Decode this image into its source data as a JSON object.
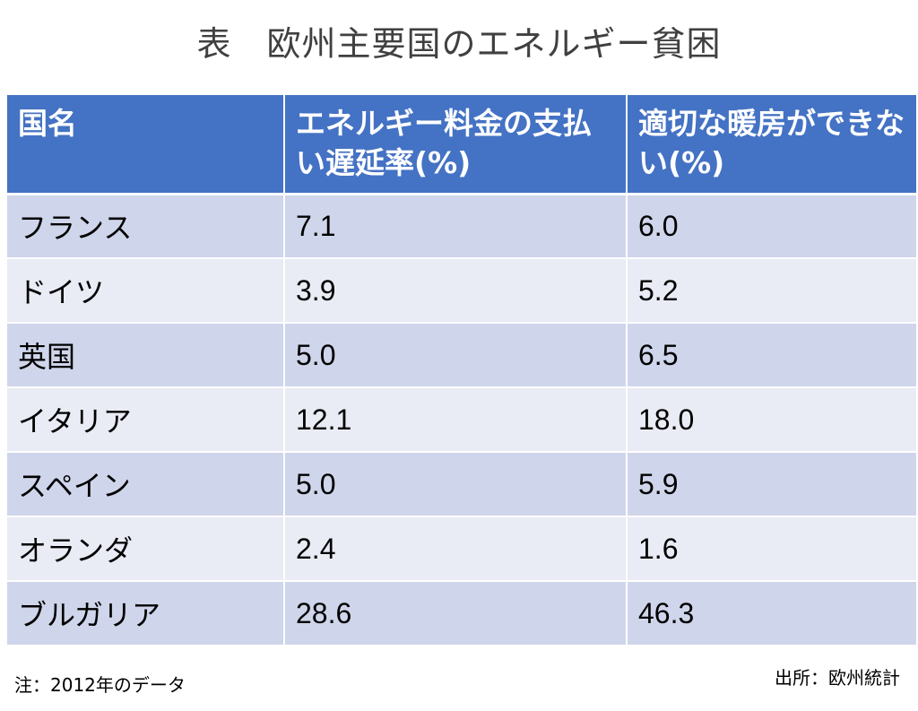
{
  "title": "表　欧州主要国のエネルギー貧困",
  "table": {
    "headers": [
      "国名",
      "エネルギー料金の支払い遅延率(%)",
      "適切な暖房ができない(%)"
    ],
    "rows": [
      {
        "country": "フランス",
        "arrears": "7.1",
        "heating": "6.0"
      },
      {
        "country": "ドイツ",
        "arrears": "3.9",
        "heating": "5.2"
      },
      {
        "country": "英国",
        "arrears": "5.0",
        "heating": "6.5"
      },
      {
        "country": "イタリア",
        "arrears": "12.1",
        "heating": "18.0"
      },
      {
        "country": "スペイン",
        "arrears": "5.0",
        "heating": "5.9"
      },
      {
        "country": "オランダ",
        "arrears": "2.4",
        "heating": "1.6"
      },
      {
        "country": "ブルガリア",
        "arrears": "28.6",
        "heating": "46.3"
      }
    ]
  },
  "note": "注：2012年のデータ",
  "source": "出所：欧州統計",
  "colors": {
    "header_bg": "#4472c4",
    "row_odd": "#cfd5ea",
    "row_even": "#e9ebf5"
  }
}
